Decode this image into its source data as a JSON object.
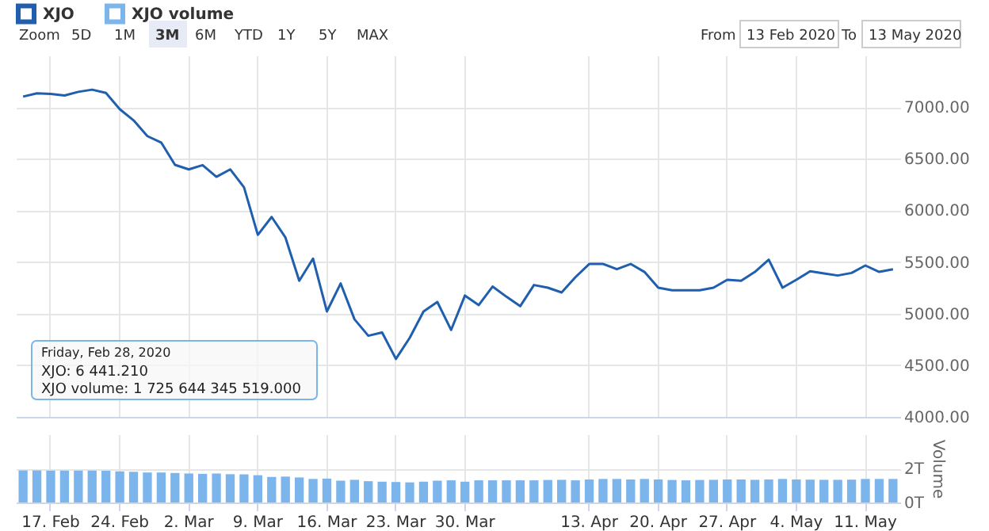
{
  "chart_data": [
    {
      "type": "line",
      "categories": [
        null,
        null,
        null,
        null,
        null,
        null,
        null,
        null,
        null,
        null,
        null,
        null,
        null,
        null,
        null,
        null,
        null,
        null,
        null,
        null,
        null,
        null,
        null,
        null,
        null,
        null,
        null,
        null,
        null,
        null,
        null,
        null,
        null,
        null,
        null,
        null,
        null,
        null,
        null,
        null,
        null,
        null,
        null,
        null,
        null,
        null,
        null,
        null,
        null,
        null,
        null,
        null,
        null,
        null,
        null,
        null,
        null,
        null,
        null,
        null,
        null,
        null,
        null,
        null
      ],
      "series": [
        {
          "name": "XJO",
          "color": "#1f5fad",
          "values": [
            7102,
            7133,
            7128,
            7112,
            7148,
            7169,
            7138,
            6980,
            6872,
            6719,
            6657,
            6441,
            6397,
            6438,
            6325,
            6397,
            6223,
            5763,
            5936,
            5737,
            5318,
            5533,
            5021,
            5292,
            4945,
            4786,
            4817,
            4561,
            4766,
            5021,
            5113,
            4842,
            5175,
            5083,
            5262,
            5164,
            5072,
            5277,
            5251,
            5205,
            5353,
            5481,
            5481,
            5430,
            5481,
            5404,
            5251,
            5226,
            5226,
            5226,
            5251,
            5328,
            5318,
            5404,
            5522,
            5251,
            5328,
            5410,
            5389,
            5369,
            5394,
            5466,
            5404,
            5430
          ]
        }
      ],
      "ylim": [
        4000,
        7500
      ],
      "yticks": [
        {
          "value": 4000,
          "label": "4000.00"
        },
        {
          "value": 4500,
          "label": "4500.00"
        },
        {
          "value": 5000,
          "label": "5000.00"
        },
        {
          "value": 5500,
          "label": "5500.00"
        },
        {
          "value": 6000,
          "label": "6000.00"
        },
        {
          "value": 6500,
          "label": "6500.00"
        },
        {
          "value": 7000,
          "label": "7000.00"
        }
      ],
      "grid": true,
      "legend": "top left",
      "tick_labels": "y",
      "annotations": [
        "Zoom",
        "5D",
        "1M",
        "3M",
        "6M",
        "YTD",
        "1Y",
        "5Y",
        "MAX",
        "From",
        "13 Feb 2020",
        "To",
        "13 May 2020",
        "Friday, Feb 28, 2020",
        "XJO: 6 441.210",
        "XJO volume: 1 725 644 345 519.000"
      ]
    },
    {
      "type": "bar",
      "categories": [
        null,
        null,
        "17. Feb",
        null,
        null,
        null,
        null,
        "24. Feb",
        null,
        null,
        null,
        null,
        "2. Mar",
        null,
        null,
        null,
        null,
        "9. Mar",
        null,
        null,
        null,
        null,
        "16. Mar",
        null,
        null,
        null,
        null,
        "23. Mar",
        null,
        null,
        null,
        null,
        "30. Mar",
        null,
        null,
        null,
        null,
        null,
        null,
        null,
        null,
        "13. Apr",
        null,
        null,
        null,
        null,
        "20. Apr",
        null,
        null,
        null,
        null,
        "27. Apr",
        null,
        null,
        null,
        null,
        "4. May",
        null,
        null,
        null,
        null,
        "11. May",
        null,
        null
      ],
      "series": [
        {
          "name": "XJO volume",
          "color": "#7cb5ec",
          "values": [
            1.88,
            1.88,
            1.87,
            1.87,
            1.87,
            1.87,
            1.86,
            1.82,
            1.8,
            1.76,
            1.76,
            1.73,
            1.7,
            1.68,
            1.7,
            1.66,
            1.65,
            1.6,
            1.5,
            1.52,
            1.47,
            1.38,
            1.4,
            1.28,
            1.33,
            1.25,
            1.22,
            1.2,
            1.18,
            1.22,
            1.28,
            1.3,
            1.22,
            1.3,
            1.3,
            1.3,
            1.3,
            1.3,
            1.32,
            1.33,
            1.3,
            1.35,
            1.38,
            1.38,
            1.35,
            1.38,
            1.35,
            1.32,
            1.3,
            1.32,
            1.33,
            1.35,
            1.35,
            1.33,
            1.35,
            1.38,
            1.35,
            1.34,
            1.33,
            1.33,
            1.34,
            1.38,
            1.38,
            1.38
          ]
        }
      ],
      "ylim": [
        0,
        4
      ],
      "yticks": [
        {
          "value": 0,
          "label": "0T"
        },
        {
          "value": 2,
          "label": "2T"
        }
      ],
      "ylabel": "Volume",
      "grid": true,
      "legend": "top left"
    }
  ]
}
